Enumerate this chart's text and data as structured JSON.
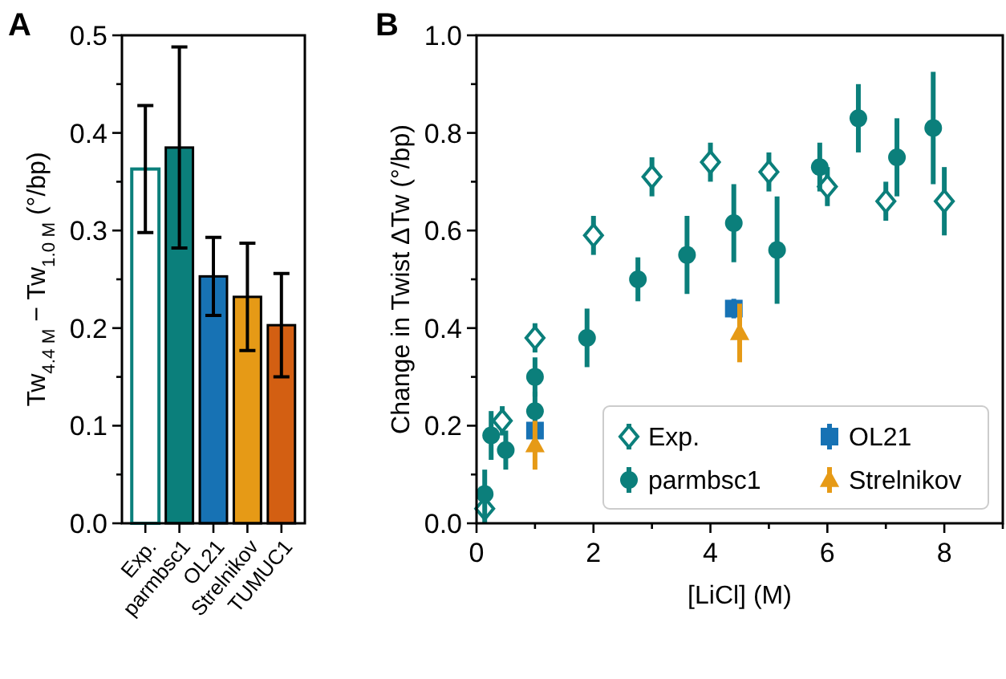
{
  "chart_data": [
    {
      "type": "bar",
      "title": "A",
      "ylabel": "Tw$_{4.4 M}$ − Tw$_{1.0 M}$ (°/bp)",
      "categories": [
        "Exp.",
        "parmbsc1",
        "OL21",
        "Strelnikov",
        "TUMUC1"
      ],
      "values": [
        0.363,
        0.385,
        0.253,
        0.232,
        0.203
      ],
      "errors": [
        0.065,
        0.103,
        0.04,
        0.055,
        0.053
      ],
      "colors": [
        "#ffffff",
        "#0b7f7b",
        "#1772b4",
        "#e69a16",
        "#d35f12"
      ],
      "ylim": [
        0,
        0.5
      ],
      "yticks": [
        {
          "value": 0,
          "label": "0.0"
        },
        {
          "value": 0.05,
          "label": null
        },
        0.1,
        {
          "value": 0.15,
          "label": null
        },
        0.2,
        {
          "value": 0.25,
          "label": null
        },
        0.3,
        {
          "value": 0.35,
          "label": null
        },
        0.4,
        {
          "value": 0.45,
          "label": null
        },
        0.5
      ],
      "grid": false
    },
    {
      "type": "scatter",
      "title": "B",
      "xlabel": "[LiCl] (M)",
      "ylabel": "Change in Twist ΔTw (°/bp)",
      "xlim": [
        0,
        9
      ],
      "xticks": [
        0,
        {
          "value": 1,
          "label": null
        },
        2,
        {
          "value": 3,
          "label": null
        },
        4,
        {
          "value": 5,
          "label": null
        },
        6,
        {
          "value": 7,
          "label": null
        },
        8,
        {
          "value": 9,
          "label": null
        }
      ],
      "ylim": [
        0,
        1
      ],
      "yticks": [
        {
          "value": 0,
          "label": "0.0"
        },
        {
          "value": 0.1,
          "label": null
        },
        0.2,
        {
          "value": 0.3,
          "label": null
        },
        0.4,
        {
          "value": 0.5,
          "label": null
        },
        0.6,
        {
          "value": 0.7,
          "label": null
        },
        0.8,
        {
          "value": 0.9,
          "label": null
        },
        {
          "value": 1,
          "label": "1.0"
        }
      ],
      "grid": false,
      "legend": "bottom right",
      "series": [
        {
          "name": "Exp.",
          "color": "#0b7f7b",
          "marker": "diamond",
          "x": [
            0.14,
            0.44,
            1,
            2,
            3,
            4,
            5,
            6,
            7,
            8
          ],
          "values": [
            0.03,
            0.21,
            0.38,
            0.59,
            0.71,
            0.74,
            0.72,
            0.69,
            0.66,
            0.66
          ],
          "errors": [
            0.03,
            0.03,
            0.03,
            0.04,
            0.04,
            0.04,
            0.04,
            0.04,
            0.04,
            0.07
          ]
        },
        {
          "name": "parmbsc1",
          "color": "#0b7f7b",
          "marker": "circle",
          "x": [
            0.14,
            0.25,
            0.5,
            1,
            1,
            1.89,
            2.76,
            3.6,
            4.4,
            5.14,
            5.87,
            6.53,
            7.19,
            7.81
          ],
          "values": [
            0.06,
            0.18,
            0.15,
            0.23,
            0.3,
            0.38,
            0.5,
            0.55,
            0.615,
            0.56,
            0.73,
            0.83,
            0.75,
            0.81
          ],
          "errors": [
            0.05,
            0.05,
            0.04,
            0.04,
            0.04,
            0.06,
            0.045,
            0.08,
            0.08,
            0.11,
            0.05,
            0.07,
            0.08,
            0.115
          ]
        },
        {
          "name": "OL21",
          "color": "#1772b4",
          "marker": "square",
          "x": [
            1,
            4.4
          ],
          "values": [
            0.19,
            0.44
          ],
          "errors": [
            0.02,
            0.02
          ]
        },
        {
          "name": "Strelnikov",
          "color": "#e69a16",
          "marker": "triangle",
          "x": [
            1,
            4.5
          ],
          "values": [
            0.16,
            0.39
          ],
          "errors": [
            0.05,
            0.06
          ]
        }
      ]
    }
  ]
}
